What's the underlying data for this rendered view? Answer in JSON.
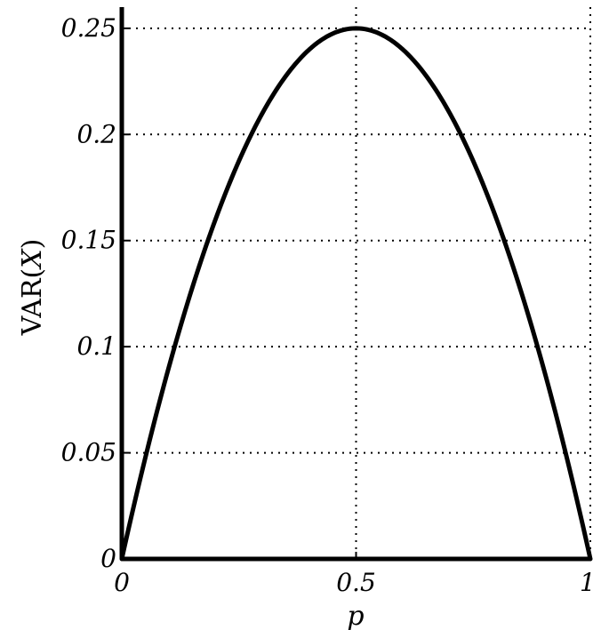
{
  "chart_data": {
    "type": "line",
    "title": "",
    "xlabel": "p",
    "ylabel": "VAR(X)",
    "ylabel_prefix": "VAR(",
    "ylabel_var": "X",
    "ylabel_suffix": ")",
    "xlim": [
      0,
      1
    ],
    "ylim": [
      0,
      0.26
    ],
    "xticks": [
      0,
      0.5,
      1
    ],
    "xtick_labels": [
      "0",
      "0.5",
      "1"
    ],
    "yticks": [
      0,
      0.05,
      0.1,
      0.15,
      0.2,
      0.25
    ],
    "ytick_labels": [
      "0",
      "0.05",
      "0.1",
      "0.15",
      "0.2",
      "0.25"
    ],
    "grid": true,
    "grid_style": "dotted",
    "series": [
      {
        "x": [
          0,
          0.05,
          0.1,
          0.15,
          0.2,
          0.25,
          0.3,
          0.35,
          0.4,
          0.45,
          0.5,
          0.55,
          0.6,
          0.65,
          0.7,
          0.75,
          0.8,
          0.85,
          0.9,
          0.95,
          1
        ],
        "values": [
          0,
          0.0475,
          0.09,
          0.1275,
          0.16,
          0.1875,
          0.21,
          0.2275,
          0.24,
          0.2475,
          0.25,
          0.2475,
          0.24,
          0.2275,
          0.21,
          0.1875,
          0.16,
          0.1275,
          0.09,
          0.0475,
          0
        ],
        "color": "#000000"
      }
    ]
  }
}
